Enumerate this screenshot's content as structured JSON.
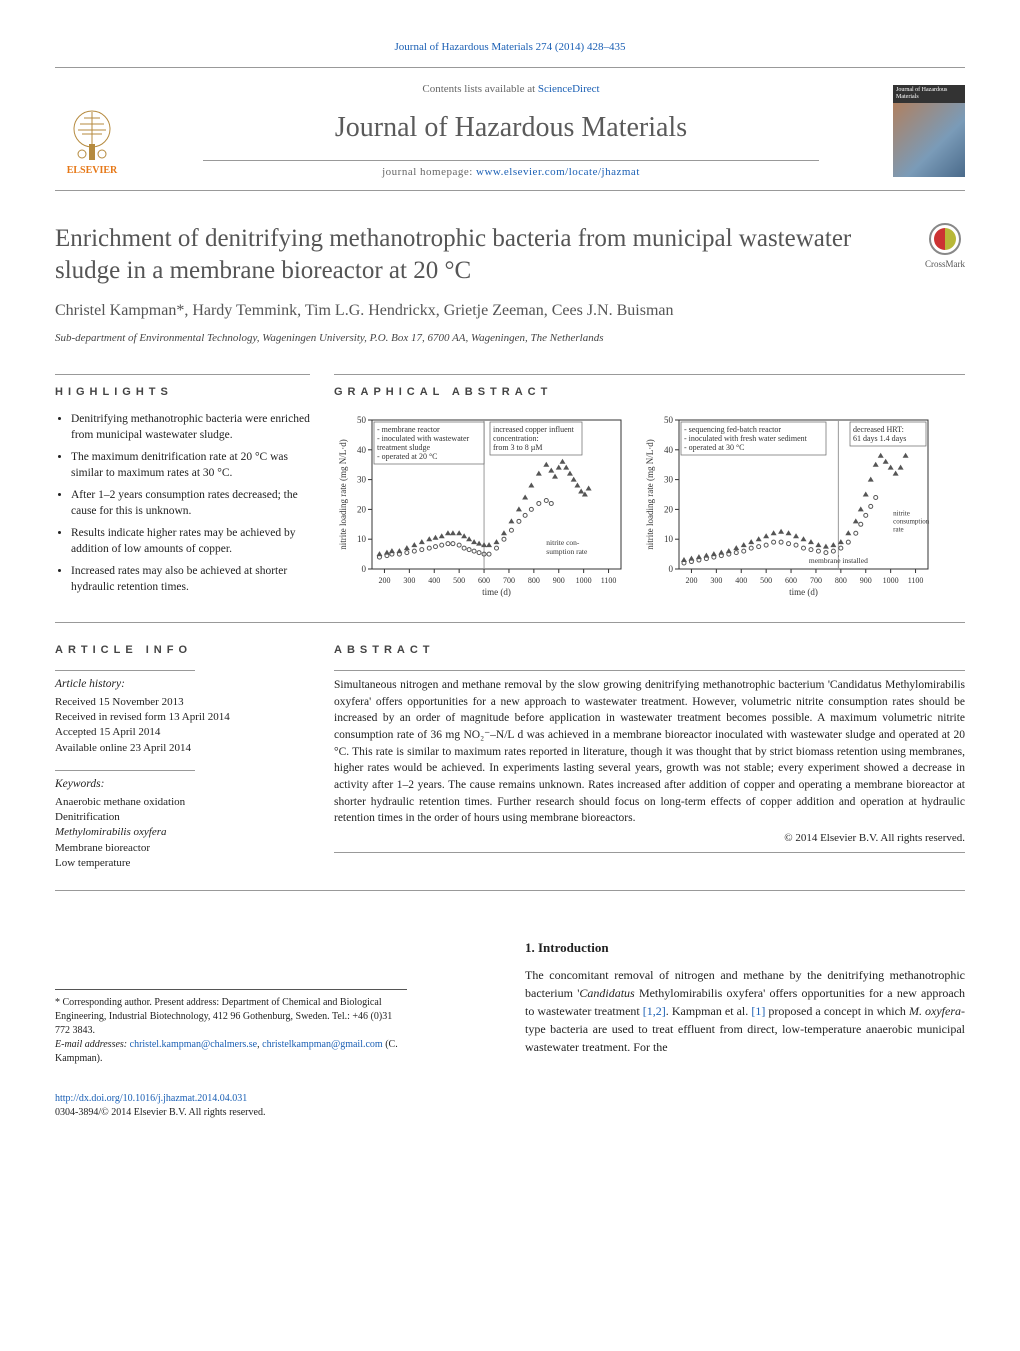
{
  "top_reference": "Journal of Hazardous Materials 274 (2014) 428–435",
  "masthead": {
    "contents_prefix": "Contents lists available at ",
    "contents_link": "ScienceDirect",
    "journal_title": "Journal of Hazardous Materials",
    "homepage_prefix": "journal homepage: ",
    "homepage_link": "www.elsevier.com/locate/jhazmat",
    "publisher_label": "ELSEVIER",
    "cover_top_text": "Journal of\nHazardous\nMaterials"
  },
  "article": {
    "title": "Enrichment of denitrifying methanotrophic bacteria from municipal wastewater sludge in a membrane bioreactor at 20 °C",
    "crossmark_label": "CrossMark",
    "authors": "Christel Kampman*, Hardy Temmink, Tim L.G. Hendrickx, Grietje Zeeman, Cees J.N. Buisman",
    "affiliation": "Sub-department of Environmental Technology, Wageningen University, P.O. Box 17, 6700 AA, Wageningen, The Netherlands"
  },
  "highlights": {
    "heading": "HIGHLIGHTS",
    "items": [
      "Denitrifying methanotrophic bacteria were enriched from municipal wastewater sludge.",
      "The maximum denitrification rate at 20 °C was similar to maximum rates at 30 °C.",
      "After 1–2 years consumption rates decreased; the cause for this is unknown.",
      "Results indicate higher rates may be achieved by addition of low amounts of copper.",
      "Increased rates may also be achieved at shorter hydraulic retention times."
    ]
  },
  "graphical_abstract": {
    "heading": "GRAPHICAL ABSTRACT",
    "y_label": "nitrite loading rate (mg N/L·d)",
    "x_label": "time (d)",
    "y_min": 0,
    "y_max": 50,
    "y_tick_step": 10,
    "x_min": 150,
    "x_max": 1150,
    "x_ticks": [
      200,
      300,
      400,
      500,
      600,
      700,
      800,
      900,
      1000,
      1100
    ],
    "chart_left": {
      "box1_lines": [
        "- membrane reactor",
        "- inoculated with wastewater",
        "  treatment sludge",
        "- operated at 20 °C"
      ],
      "box2_lines": [
        "increased copper influent",
        "concentration:",
        "from 3 to 8 µM"
      ],
      "label_inside": "nitrite con-\nsumption rate",
      "loading_points": [
        [
          180,
          5
        ],
        [
          210,
          5.5
        ],
        [
          230,
          6
        ],
        [
          260,
          6
        ],
        [
          290,
          7
        ],
        [
          320,
          8
        ],
        [
          350,
          9
        ],
        [
          380,
          10
        ],
        [
          405,
          10.5
        ],
        [
          430,
          11
        ],
        [
          455,
          12
        ],
        [
          475,
          12
        ],
        [
          500,
          12
        ],
        [
          520,
          11
        ],
        [
          540,
          10
        ],
        [
          560,
          9
        ],
        [
          580,
          8.5
        ],
        [
          600,
          8
        ],
        [
          620,
          8
        ],
        [
          650,
          9
        ],
        [
          680,
          12
        ],
        [
          710,
          16
        ],
        [
          740,
          20
        ],
        [
          765,
          24
        ],
        [
          790,
          28
        ],
        [
          820,
          32
        ],
        [
          850,
          35
        ],
        [
          870,
          33
        ],
        [
          885,
          31
        ],
        [
          900,
          34
        ],
        [
          915,
          36
        ],
        [
          930,
          34
        ],
        [
          945,
          32
        ],
        [
          960,
          30
        ],
        [
          975,
          28
        ],
        [
          990,
          26
        ],
        [
          1005,
          25
        ],
        [
          1020,
          27
        ]
      ],
      "consumption_points": [
        [
          180,
          4
        ],
        [
          210,
          4.5
        ],
        [
          230,
          5
        ],
        [
          260,
          5
        ],
        [
          290,
          5.5
        ],
        [
          320,
          6
        ],
        [
          350,
          6.5
        ],
        [
          380,
          7
        ],
        [
          405,
          7.5
        ],
        [
          430,
          8
        ],
        [
          455,
          8.5
        ],
        [
          475,
          8.5
        ],
        [
          500,
          8
        ],
        [
          520,
          7
        ],
        [
          540,
          6.5
        ],
        [
          560,
          6
        ],
        [
          580,
          5.5
        ],
        [
          600,
          5
        ],
        [
          620,
          5
        ],
        [
          650,
          7
        ],
        [
          680,
          10
        ],
        [
          710,
          13
        ],
        [
          740,
          16
        ],
        [
          765,
          18
        ],
        [
          790,
          20
        ],
        [
          820,
          22
        ],
        [
          850,
          23
        ],
        [
          870,
          22
        ]
      ],
      "vline_x": 600,
      "colors": {
        "points": "#555555",
        "bg": "#ffffff",
        "axis": "#333",
        "grid": "#999",
        "annot_box": "#ffffff",
        "annot_border": "#666"
      }
    },
    "chart_right": {
      "box1_lines": [
        "- sequencing fed-batch reactor",
        "- inoculated with fresh water sediment",
        "- operated at 30 °C"
      ],
      "box2_lines": [
        "decreased HRT:",
        "61 days  1.4 days"
      ],
      "label_consumption": "nitrite\nconsumption\nrate",
      "label_membrane": "membrane installed",
      "loading_points": [
        [
          170,
          3
        ],
        [
          200,
          3.5
        ],
        [
          230,
          4
        ],
        [
          260,
          4.5
        ],
        [
          290,
          5
        ],
        [
          320,
          5.5
        ],
        [
          350,
          6
        ],
        [
          380,
          7
        ],
        [
          410,
          8
        ],
        [
          440,
          9
        ],
        [
          470,
          10
        ],
        [
          500,
          11
        ],
        [
          530,
          12
        ],
        [
          560,
          12.5
        ],
        [
          590,
          12
        ],
        [
          620,
          11
        ],
        [
          650,
          10
        ],
        [
          680,
          9
        ],
        [
          710,
          8
        ],
        [
          740,
          7.5
        ],
        [
          770,
          8
        ],
        [
          800,
          9
        ],
        [
          830,
          12
        ],
        [
          860,
          16
        ],
        [
          880,
          20
        ],
        [
          900,
          25
        ],
        [
          920,
          30
        ],
        [
          940,
          35
        ],
        [
          960,
          38
        ],
        [
          980,
          36
        ],
        [
          1000,
          34
        ],
        [
          1020,
          32
        ],
        [
          1040,
          34
        ],
        [
          1060,
          38
        ],
        [
          1080,
          42
        ]
      ],
      "consumption_points": [
        [
          170,
          2
        ],
        [
          200,
          2.5
        ],
        [
          230,
          3
        ],
        [
          260,
          3.5
        ],
        [
          290,
          4
        ],
        [
          320,
          4.5
        ],
        [
          350,
          5
        ],
        [
          380,
          5.5
        ],
        [
          410,
          6
        ],
        [
          440,
          7
        ],
        [
          470,
          7.5
        ],
        [
          500,
          8
        ],
        [
          530,
          9
        ],
        [
          560,
          9
        ],
        [
          590,
          8.5
        ],
        [
          620,
          8
        ],
        [
          650,
          7
        ],
        [
          680,
          6.5
        ],
        [
          710,
          6
        ],
        [
          740,
          5.5
        ],
        [
          770,
          6
        ],
        [
          800,
          7
        ],
        [
          830,
          9
        ],
        [
          860,
          12
        ],
        [
          880,
          15
        ],
        [
          900,
          18
        ],
        [
          920,
          21
        ],
        [
          940,
          24
        ]
      ],
      "vline_x": 790,
      "colors": {
        "points": "#555555",
        "bg": "#ffffff",
        "axis": "#333",
        "grid": "#999",
        "annot_box": "#ffffff",
        "annot_border": "#666"
      }
    }
  },
  "article_info": {
    "heading": "ARTICLE INFO",
    "history_heading": "Article history:",
    "history": [
      "Received 15 November 2013",
      "Received in revised form 13 April 2014",
      "Accepted 15 April 2014",
      "Available online 23 April 2014"
    ],
    "keywords_heading": "Keywords:",
    "keywords": [
      "Anaerobic methane oxidation",
      "Denitrification",
      "Methylomirabilis oxyfera",
      "Membrane bioreactor",
      "Low temperature"
    ]
  },
  "abstract": {
    "heading": "ABSTRACT",
    "text": "Simultaneous nitrogen and methane removal by the slow growing denitrifying methanotrophic bacterium 'Candidatus Methylomirabilis oxyfera' offers opportunities for a new approach to wastewater treatment. However, volumetric nitrite consumption rates should be increased by an order of magnitude before application in wastewater treatment becomes possible. A maximum volumetric nitrite consumption rate of 36 mg NO₂⁻–N/L d was achieved in a membrane bioreactor inoculated with wastewater sludge and operated at 20 °C. This rate is similar to maximum rates reported in literature, though it was thought that by strict biomass retention using membranes, higher rates would be achieved. In experiments lasting several years, growth was not stable; every experiment showed a decrease in activity after 1–2 years. The cause remains unknown. Rates increased after addition of copper and operating a membrane bioreactor at shorter hydraulic retention times. Further research should focus on long-term effects of copper addition and operation at hydraulic retention times in the order of hours using membrane bioreactors.",
    "copyright": "© 2014 Elsevier B.V. All rights reserved."
  },
  "introduction": {
    "heading": "1. Introduction",
    "text_parts": [
      "The concomitant removal of nitrogen and methane by the denitrifying methanotrophic bacterium '",
      "Candidatus",
      " Methylomirabilis oxyfera' offers opportunities for a new approach to wastewater treatment ",
      "[1,2]",
      ". Kampman et al. ",
      "[1]",
      " proposed a concept in which ",
      "M. oxyfera",
      "-type bacteria are used to treat effluent from direct, low-temperature anaerobic municipal wastewater treatment. For the"
    ]
  },
  "corresponding": {
    "note": "* Corresponding author. Present address: Department of Chemical and Biological Engineering, Industrial Biotechnology, 412 96 Gothenburg, Sweden. Tel.: +46 (0)31 772 3843.",
    "email_label": "E-mail addresses: ",
    "emails": [
      "christel.kampman@chalmers.se",
      "christelkampman@gmail.com"
    ],
    "email_attrib": " (C. Kampman)."
  },
  "footer": {
    "doi": "http://dx.doi.org/10.1016/j.jhazmat.2014.04.031",
    "issn_line": "0304-3894/© 2014 Elsevier B.V. All rights reserved."
  }
}
